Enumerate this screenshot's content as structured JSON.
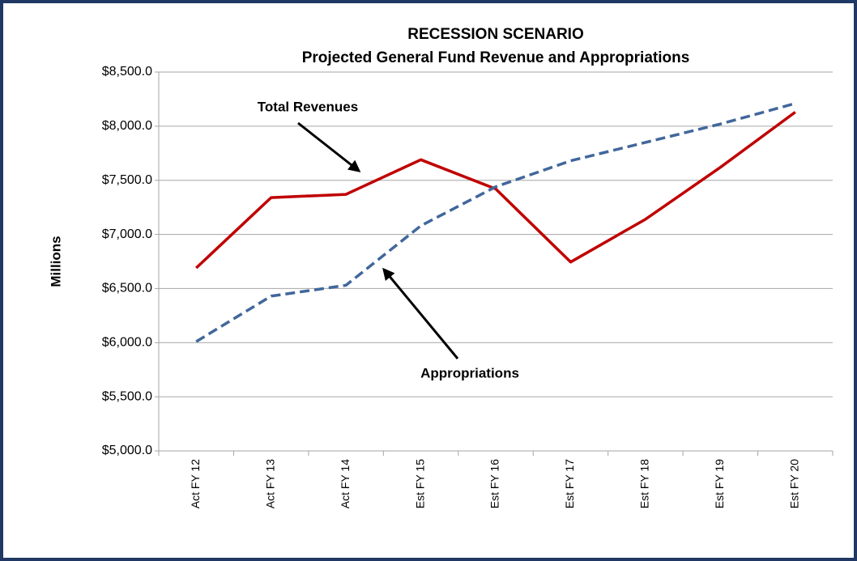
{
  "chart_data": {
    "type": "line",
    "title": "RECESSION SCENARIO",
    "subtitle": "Projected General Fund Revenue and Appropriations",
    "y_label": "Millions",
    "categories": [
      "Act FY 12",
      "Act FY 13",
      "Act FY 14",
      "Est FY 15",
      "Est FY 16",
      "Est FY 17",
      "Est FY 18",
      "Est FY 19",
      "Est FY 20"
    ],
    "series": [
      {
        "name": "Total Revenues",
        "color": "#c00000",
        "dash": false,
        "values": [
          6690,
          7340,
          7370,
          7690,
          7420,
          6745,
          7140,
          7620,
          8130
        ]
      },
      {
        "name": "Appropriations",
        "color": "#41679b",
        "dash": true,
        "values": [
          6010,
          6430,
          6530,
          7080,
          7440,
          7680,
          7850,
          8020,
          8210
        ]
      }
    ],
    "ylim": [
      5000,
      8500
    ],
    "yticks": [
      {
        "value": 5000,
        "label": "$5,000.0"
      },
      {
        "value": 5500,
        "label": "$5,500.0"
      },
      {
        "value": 6000,
        "label": "$6,000.0"
      },
      {
        "value": 6500,
        "label": "$6,500.0"
      },
      {
        "value": 7000,
        "label": "$7,000.0"
      },
      {
        "value": 7500,
        "label": "$7,500.0"
      },
      {
        "value": 8000,
        "label": "$8,000.0"
      },
      {
        "value": 8500,
        "label": "$8,500.0"
      }
    ],
    "grid": true
  }
}
